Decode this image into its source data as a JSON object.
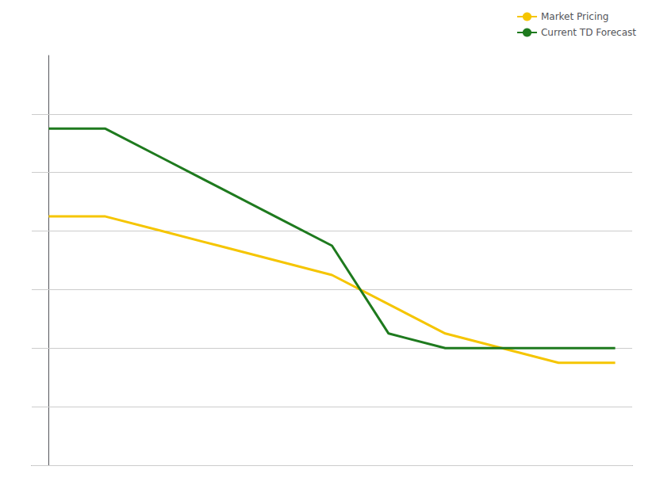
{
  "chart_data": {
    "type": "line",
    "x": [
      0,
      1,
      2,
      3,
      4,
      5,
      6,
      7,
      8,
      9,
      10
    ],
    "series": [
      {
        "name": "Market Pricing",
        "color": "#f5c500",
        "values": [
          4.625,
          4.625,
          4.5,
          4.375,
          4.25,
          4.125,
          3.875,
          3.625,
          3.5,
          3.375,
          3.375
        ]
      },
      {
        "name": "Current TD Forecast",
        "color": "#1e7a1e",
        "values": [
          5.375,
          5.375,
          5.125,
          4.875,
          4.625,
          4.375,
          3.625,
          3.5,
          3.5,
          3.5,
          3.5
        ]
      }
    ],
    "xlim": [
      -0.3,
      10.3
    ],
    "ylim": [
      2.5,
      6.0
    ],
    "yticks": [
      2.5,
      3.0,
      3.5,
      4.0,
      4.5,
      5.0,
      5.5
    ],
    "grid": true,
    "legend": "upper right",
    "tick_labels": false
  }
}
